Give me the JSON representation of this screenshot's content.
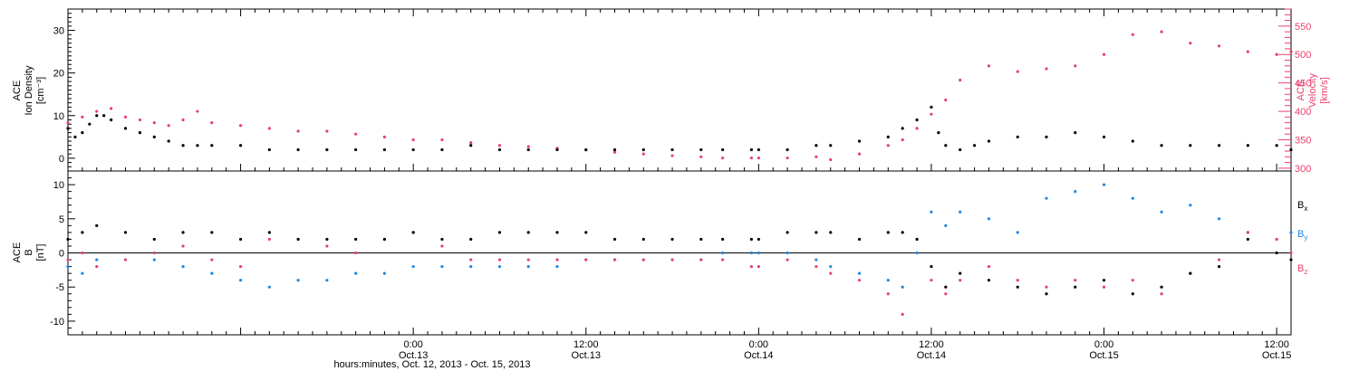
{
  "colors": {
    "density": "#000000",
    "velocity": "#e8406e",
    "bx": "#000000",
    "by": "#1f87e0",
    "bz": "#e8406e",
    "axis": "#000000"
  },
  "xaxis": {
    "title": "hours:minutes, Oct. 12, 2013 - Oct. 15, 2013",
    "range_hours": [
      0,
      85
    ],
    "tick_hours": [
      24,
      36,
      48,
      60,
      72,
      84
    ],
    "tick_times": [
      "0:00",
      "12:00",
      "0:00",
      "12:00",
      "0:00",
      "12:00"
    ],
    "tick_dates": [
      "Oct.13",
      "Oct.13",
      "Oct.14",
      "Oct.14",
      "Oct.15",
      "Oct.15"
    ]
  },
  "chart_data": [
    {
      "type": "scatter",
      "panel": "top",
      "ylabel_lines": [
        "ACE",
        "Ion Density",
        "[cm⁻³]"
      ],
      "ylim": [
        -3,
        35
      ],
      "yticks": [
        0,
        10,
        20,
        30
      ],
      "y2label_lines": [
        "ACE",
        "Velocity",
        "[km/s]"
      ],
      "y2lim": [
        295,
        580
      ],
      "y2ticks": [
        300,
        350,
        400,
        450,
        500,
        550
      ],
      "series": [
        {
          "name": "Density",
          "axis": "left",
          "x": [
            0,
            0.5,
            1,
            1.5,
            2,
            2.5,
            3,
            4,
            5,
            6,
            7,
            8,
            9,
            10,
            12,
            14,
            16,
            18,
            20,
            22,
            24,
            26,
            28,
            30,
            32,
            34,
            36,
            38,
            40,
            42,
            44,
            45.5,
            47.5,
            48,
            50,
            52,
            53,
            55,
            57,
            58,
            59,
            60,
            60.5,
            61,
            62,
            63,
            64,
            66,
            68,
            70,
            72,
            74,
            76,
            78,
            80,
            82,
            84,
            85
          ],
          "values": [
            7,
            5,
            6,
            8,
            10,
            10,
            9,
            7,
            6,
            5,
            4,
            3,
            3,
            3,
            3,
            2,
            2,
            2,
            2,
            2,
            2,
            2,
            3,
            2,
            2,
            2,
            2,
            2,
            2,
            2,
            2,
            2,
            2,
            2,
            2,
            3,
            3,
            4,
            5,
            7,
            9,
            12,
            6,
            3,
            2,
            3,
            4,
            5,
            5,
            6,
            5,
            4,
            3,
            3,
            3,
            3,
            3,
            2
          ]
        },
        {
          "name": "Velocity",
          "axis": "right",
          "x": [
            0,
            1,
            2,
            3,
            4,
            5,
            6,
            7,
            8,
            9,
            10,
            12,
            14,
            16,
            18,
            20,
            22,
            24,
            26,
            28,
            30,
            32,
            34,
            36,
            38,
            40,
            42,
            44,
            45.5,
            47.5,
            48,
            50,
            52,
            53,
            55,
            57,
            58,
            59,
            60,
            61,
            62,
            64,
            66,
            68,
            70,
            72,
            74,
            76,
            78,
            80,
            82,
            84,
            85
          ],
          "values": [
            380,
            390,
            400,
            405,
            390,
            385,
            380,
            375,
            385,
            400,
            380,
            375,
            370,
            365,
            365,
            360,
            355,
            350,
            350,
            345,
            340,
            338,
            335,
            332,
            328,
            325,
            322,
            320,
            318,
            318,
            318,
            318,
            320,
            315,
            325,
            340,
            350,
            370,
            395,
            420,
            455,
            480,
            470,
            475,
            480,
            500,
            535,
            540,
            520,
            515,
            505,
            500,
            505
          ]
        }
      ]
    },
    {
      "type": "scatter",
      "panel": "bottom",
      "ylabel_lines": [
        "ACE",
        "B",
        "[nT]"
      ],
      "ylim": [
        -12,
        12
      ],
      "yticks": [
        -10,
        -5,
        0,
        5,
        10
      ],
      "zero_line": true,
      "series": [
        {
          "name": "B_x",
          "label_main": "B",
          "label_sub": "x",
          "x": [
            0,
            1,
            2,
            4,
            6,
            8,
            10,
            12,
            14,
            16,
            18,
            20,
            22,
            24,
            26,
            28,
            30,
            32,
            34,
            36,
            38,
            40,
            42,
            44,
            45.5,
            47.5,
            48,
            50,
            52,
            53,
            55,
            57,
            58,
            59,
            60,
            61,
            62,
            64,
            66,
            68,
            70,
            72,
            74,
            76,
            78,
            80,
            82,
            84,
            85
          ],
          "values": [
            2,
            3,
            4,
            3,
            2,
            3,
            3,
            2,
            3,
            2,
            2,
            2,
            2,
            3,
            2,
            2,
            3,
            3,
            3,
            3,
            2,
            2,
            2,
            2,
            2,
            2,
            2,
            3,
            3,
            3,
            2,
            3,
            3,
            2,
            -2,
            -5,
            -3,
            -4,
            -5,
            -6,
            -5,
            -4,
            -6,
            -5,
            -3,
            -2,
            2,
            0,
            -1
          ]
        },
        {
          "name": "B_y",
          "label_main": "B",
          "label_sub": "y",
          "x": [
            0,
            1,
            2,
            4,
            6,
            8,
            10,
            12,
            14,
            16,
            18,
            20,
            22,
            24,
            26,
            28,
            30,
            32,
            34,
            36,
            38,
            40,
            42,
            44,
            45.5,
            47.5,
            48,
            50,
            52,
            53,
            55,
            57,
            58,
            59,
            60,
            61,
            62,
            64,
            66,
            68,
            70,
            72,
            74,
            76,
            78,
            80,
            82,
            84,
            85
          ],
          "values": [
            -2,
            -3,
            -1,
            -1,
            -1,
            -2,
            -3,
            -4,
            -5,
            -4,
            -4,
            -3,
            -3,
            -2,
            -2,
            -2,
            -2,
            -2,
            -2,
            -1,
            -1,
            -1,
            -1,
            -1,
            0,
            0,
            0,
            0,
            -1,
            -2,
            -3,
            -4,
            -5,
            0,
            6,
            4,
            6,
            5,
            3,
            8,
            9,
            10,
            8,
            6,
            7,
            5,
            3,
            2,
            3
          ]
        },
        {
          "name": "B_z",
          "label_main": "B",
          "label_sub": "z",
          "x": [
            0,
            1,
            2,
            4,
            6,
            8,
            10,
            12,
            14,
            16,
            18,
            20,
            22,
            24,
            26,
            28,
            30,
            32,
            34,
            36,
            38,
            40,
            42,
            44,
            45.5,
            47.5,
            48,
            50,
            52,
            53,
            55,
            57,
            58,
            59,
            60,
            61,
            62,
            64,
            66,
            68,
            70,
            72,
            74,
            76,
            78,
            80,
            82,
            84,
            85
          ],
          "values": [
            -1,
            0,
            -2,
            -1,
            0,
            1,
            -1,
            -2,
            2,
            2,
            1,
            0,
            2,
            3,
            1,
            -1,
            -1,
            -1,
            -1,
            -1,
            -1,
            -1,
            -1,
            -1,
            -1,
            -2,
            -2,
            -1,
            -2,
            -3,
            -4,
            -6,
            -9,
            2,
            -4,
            -6,
            -4,
            -2,
            -4,
            -5,
            -4,
            -5,
            -4,
            -6,
            -3,
            -1,
            3,
            2,
            0
          ]
        }
      ]
    }
  ]
}
